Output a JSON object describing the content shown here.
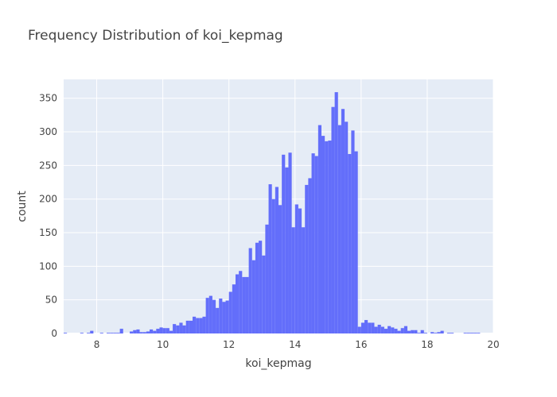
{
  "chart_data": {
    "type": "bar",
    "title": "Frequency Distribution of koi_kepmag",
    "xlabel": "koi_kepmag",
    "ylabel": "count",
    "xlim": [
      7,
      20
    ],
    "ylim": [
      0,
      378
    ],
    "bin_width": 0.1,
    "x_ticks": [
      8,
      10,
      12,
      14,
      16,
      18,
      20
    ],
    "y_ticks": [
      0,
      50,
      100,
      150,
      200,
      250,
      300,
      350
    ],
    "grid": true,
    "colors": {
      "bar": "#636efa",
      "plot_background": "#e5ecf6",
      "grid": "#ffffff"
    },
    "series": [
      {
        "x": [
          7.05,
          7.55,
          7.75,
          7.85,
          8.15,
          8.35,
          8.45,
          8.55,
          8.65,
          8.75,
          9.05,
          9.15,
          9.25,
          9.35,
          9.45,
          9.55,
          9.65,
          9.75,
          9.85,
          9.95,
          10.05,
          10.15,
          10.25,
          10.35,
          10.45,
          10.55,
          10.65,
          10.75,
          10.85,
          10.95,
          11.05,
          11.15,
          11.25,
          11.35,
          11.45,
          11.55,
          11.65,
          11.75,
          11.85,
          11.95,
          12.05,
          12.15,
          12.25,
          12.35,
          12.45,
          12.55,
          12.65,
          12.75,
          12.85,
          12.95,
          13.05,
          13.15,
          13.25,
          13.35,
          13.45,
          13.55,
          13.65,
          13.75,
          13.85,
          13.95,
          14.05,
          14.15,
          14.25,
          14.35,
          14.45,
          14.55,
          14.65,
          14.75,
          14.85,
          14.95,
          15.05,
          15.15,
          15.25,
          15.35,
          15.45,
          15.55,
          15.65,
          15.75,
          15.85,
          15.95,
          16.05,
          16.15,
          16.25,
          16.35,
          16.45,
          16.55,
          16.65,
          16.75,
          16.85,
          16.95,
          17.05,
          17.15,
          17.25,
          17.35,
          17.45,
          17.55,
          17.65,
          17.75,
          17.85,
          17.95,
          18.15,
          18.25,
          18.35,
          18.45,
          18.65,
          18.75,
          19.15,
          19.25,
          19.35,
          19.45,
          19.55
        ],
        "y": [
          1,
          1,
          1,
          4,
          1,
          1,
          1,
          1,
          1,
          7,
          3,
          5,
          6,
          2,
          2,
          3,
          6,
          4,
          7,
          9,
          8,
          8,
          4,
          14,
          12,
          16,
          12,
          19,
          19,
          25,
          23,
          23,
          25,
          53,
          56,
          50,
          38,
          52,
          47,
          49,
          62,
          73,
          88,
          93,
          84,
          84,
          127,
          109,
          135,
          138,
          116,
          162,
          222,
          200,
          218,
          191,
          266,
          247,
          269,
          158,
          192,
          186,
          158,
          221,
          231,
          268,
          264,
          310,
          294,
          286,
          287,
          337,
          359,
          310,
          334,
          315,
          267,
          302,
          271,
          10,
          16,
          20,
          16,
          16,
          10,
          13,
          10,
          7,
          11,
          9,
          7,
          4,
          8,
          11,
          4,
          5,
          5,
          1,
          5,
          1,
          2,
          1,
          2,
          4,
          1,
          1,
          1,
          1,
          1,
          1,
          1
        ]
      }
    ]
  }
}
